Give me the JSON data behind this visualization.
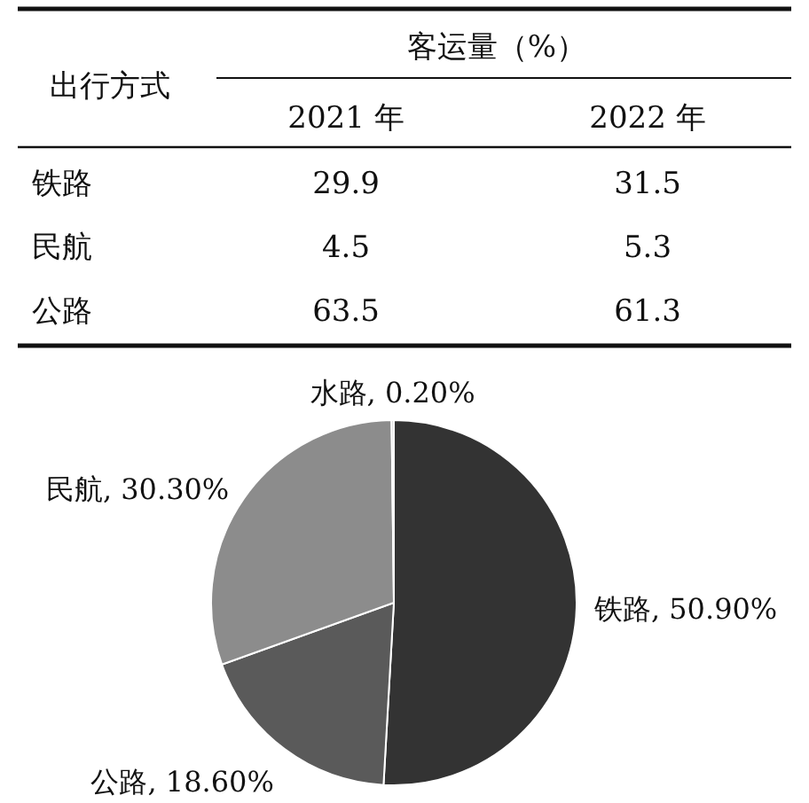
{
  "chart_data": [
    {
      "type": "heatmap",
      "title": "客运量（%）",
      "ylabel": "出行方式",
      "categories": [
        "2021 年",
        "2022 年"
      ],
      "y_categories": [
        "铁路",
        "民航",
        "公路"
      ],
      "cells": [
        [
          29.9,
          31.5
        ],
        [
          4.5,
          5.3
        ],
        [
          63.5,
          61.3
        ]
      ],
      "data_labels": true
    },
    {
      "type": "pie",
      "categories": [
        "铁路",
        "公路",
        "民航",
        "水路"
      ],
      "values": [
        50.9,
        18.6,
        30.3,
        0.2
      ],
      "value_labels": [
        "50.90%",
        "18.60%",
        "30.30%",
        "0.20%"
      ],
      "colors": [
        "#333333",
        "#5a5a5a",
        "#8c8c8c",
        "#c8c8c8"
      ]
    }
  ]
}
